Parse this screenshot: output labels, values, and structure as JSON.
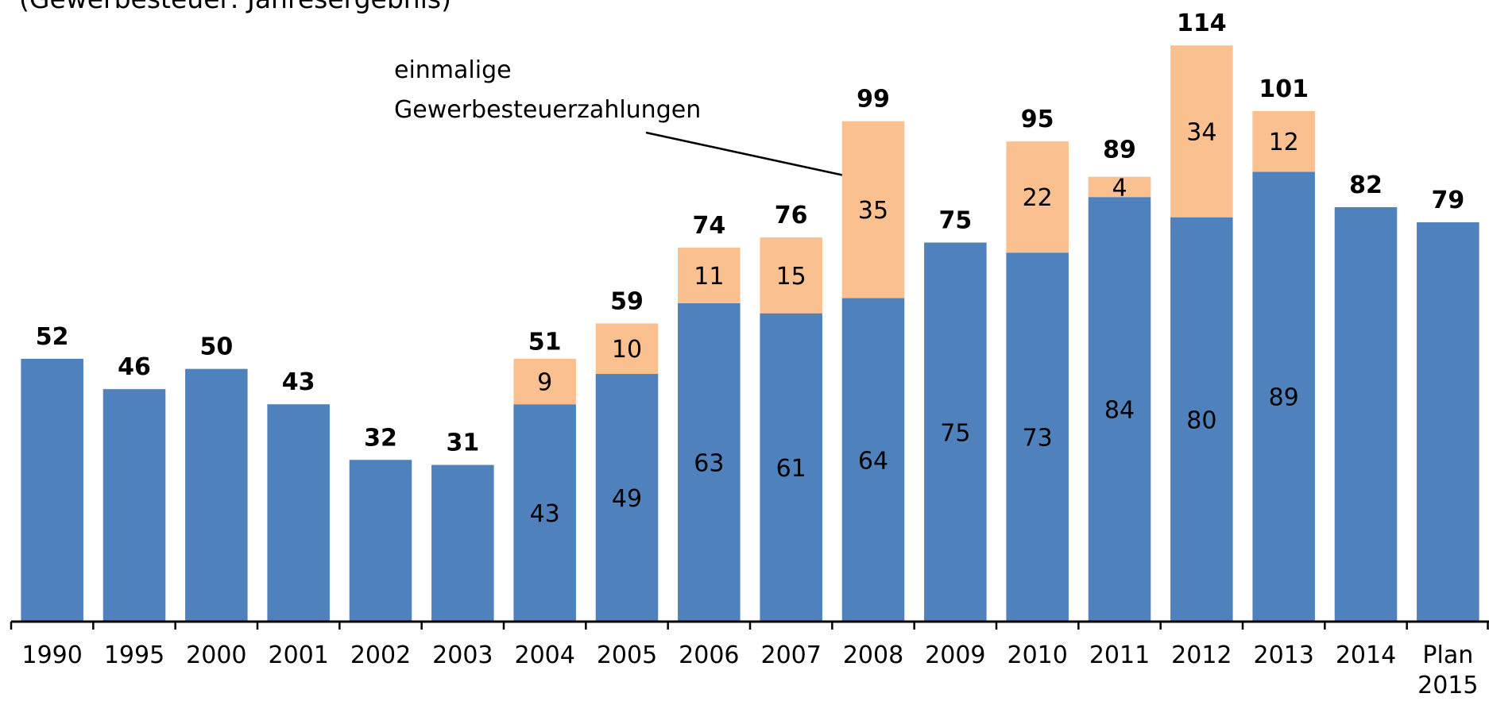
{
  "chart_data": {
    "type": "bar",
    "stacked": true,
    "subtitle": "(Gewerbesteuer: Jahresergebnis)",
    "annotation": [
      "einmalige",
      "Gewerbesteuerzahlungen"
    ],
    "categories": [
      "1990",
      "1995",
      "2000",
      "2001",
      "2002",
      "2003",
      "2004",
      "2005",
      "2006",
      "2007",
      "2008",
      "2009",
      "2010",
      "2011",
      "2012",
      "2013",
      "2014",
      "Plan 2015"
    ],
    "series": [
      {
        "color": "#4f81bd",
        "values": [
          52,
          46,
          50,
          43,
          32,
          31,
          43,
          49,
          63,
          61,
          64,
          75,
          73,
          84,
          80,
          89,
          82,
          79
        ],
        "value_labels": [
          null,
          null,
          null,
          null,
          null,
          null,
          "43",
          "49",
          "63",
          "61",
          "64",
          "75",
          "73",
          "84",
          "80",
          "89",
          null,
          null
        ]
      },
      {
        "color": "#fac090",
        "values": [
          null,
          null,
          null,
          null,
          null,
          null,
          9,
          10,
          11,
          15,
          35,
          null,
          22,
          4,
          34,
          12,
          null,
          null
        ]
      }
    ],
    "totals": [
      52,
      46,
      50,
      43,
      32,
      31,
      51,
      59,
      74,
      76,
      99,
      75,
      95,
      89,
      114,
      101,
      82,
      79
    ],
    "ylim": [
      0,
      120
    ]
  }
}
